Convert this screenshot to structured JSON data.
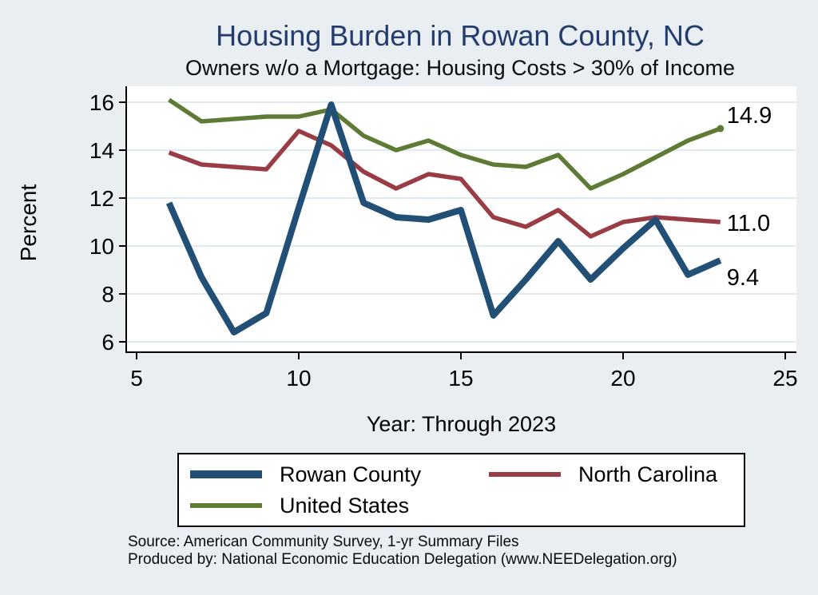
{
  "title": "Housing Burden in Rowan County, NC",
  "subtitle": "Owners w/o a Mortgage: Housing Costs > 30% of Income",
  "chart_data": {
    "type": "line",
    "x": [
      6,
      7,
      8,
      9,
      10,
      11,
      12,
      13,
      14,
      15,
      16,
      17,
      18,
      19,
      20,
      21,
      22,
      23
    ],
    "xlabel": "Year: Through 2023",
    "ylabel": "Percent",
    "x_ticks": [
      5,
      10,
      15,
      20,
      25
    ],
    "y_ticks": [
      6,
      8,
      10,
      12,
      14,
      16
    ],
    "xlim": [
      5,
      25
    ],
    "ylim": [
      6,
      16
    ],
    "grid": "horizontal",
    "legend_position": "bottom",
    "series": [
      {
        "name": "Rowan County",
        "color": "#214f76",
        "line_width": 8,
        "end_label": "9.4",
        "end_dot": false,
        "values": [
          11.8,
          8.7,
          6.4,
          7.2,
          11.6,
          15.9,
          11.8,
          11.2,
          11.1,
          11.5,
          7.1,
          8.6,
          10.2,
          8.6,
          9.9,
          11.1,
          8.8,
          9.4
        ]
      },
      {
        "name": "North Carolina",
        "color": "#993c44",
        "line_width": 5.5,
        "end_label": "11.0",
        "end_dot": false,
        "values": [
          13.9,
          13.4,
          13.3,
          13.2,
          14.8,
          14.2,
          13.1,
          12.4,
          13.0,
          12.8,
          11.2,
          10.8,
          11.5,
          10.4,
          11.0,
          11.2,
          11.1,
          11.0
        ]
      },
      {
        "name": "United States",
        "color": "#5d7b35",
        "line_width": 5.5,
        "end_label": "14.9",
        "end_dot": true,
        "values": [
          16.1,
          15.2,
          15.3,
          15.4,
          15.4,
          15.7,
          14.6,
          14.0,
          14.4,
          13.8,
          13.4,
          13.3,
          13.8,
          12.4,
          13.0,
          13.7,
          14.4,
          14.9
        ]
      }
    ]
  },
  "legend": {
    "items": [
      {
        "label": "Rowan County"
      },
      {
        "label": "North Carolina"
      },
      {
        "label": "United States"
      }
    ]
  },
  "footer": {
    "source": "Source: American Community Survey, 1-yr Summary Files",
    "produced_by": "Produced by: National Economic Education Delegation (www.NEEDelegation.org)"
  }
}
